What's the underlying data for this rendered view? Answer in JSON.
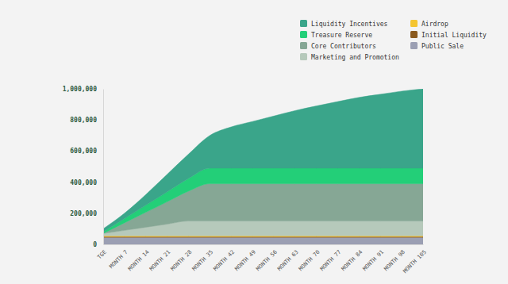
{
  "chart_data": {
    "type": "area",
    "stacked": true,
    "legend": "top-right",
    "grid": false,
    "categories": [
      "TGE",
      "MONTH 7",
      "MONTH 14",
      "MONTH 21",
      "MONTH 28",
      "MONTH 35",
      "MONTH 42",
      "MONTH 49",
      "MONTH 56",
      "MONTH 63",
      "MONTH 70",
      "MONTH 77",
      "MONTH 84",
      "MONTH 91",
      "MONTH 98",
      "MONTH 105"
    ],
    "ylim": [
      0,
      1000000
    ],
    "yticks": [
      0,
      {
        "value": 200000,
        "label": "200,000"
      },
      {
        "value": 400000,
        "label": "400,000"
      },
      {
        "value": 600000,
        "label": "600,000"
      },
      {
        "value": 800000,
        "label": "800,000"
      },
      {
        "value": 1000000,
        "label": "1,000,000"
      }
    ],
    "series": [
      {
        "name": "Liquidity Incentives",
        "color": "#3aa58a",
        "values": [
          20000,
          34000,
          68000,
          112000,
          156000,
          210000,
          265000,
          300000,
          335000,
          370000,
          400000,
          428000,
          455000,
          475000,
          495000,
          510000
        ]
      },
      {
        "name": "Treasure Reserve",
        "color": "#23cf78",
        "values": [
          10000,
          28000,
          46000,
          64000,
          82000,
          100000,
          100000,
          100000,
          100000,
          100000,
          100000,
          100000,
          100000,
          100000,
          100000,
          100000
        ]
      },
      {
        "name": "Core Contributors",
        "color": "#86a795",
        "values": [
          0,
          48000,
          96000,
          144000,
          192000,
          240000,
          240000,
          240000,
          240000,
          240000,
          240000,
          240000,
          240000,
          240000,
          240000,
          240000
        ]
      },
      {
        "name": "Marketing and Promotion",
        "color": "#b6c9bb",
        "values": [
          15000,
          35000,
          55000,
          75000,
          95000,
          95000,
          95000,
          95000,
          95000,
          95000,
          95000,
          95000,
          95000,
          95000,
          95000,
          95000
        ]
      },
      {
        "name": "Airdrop",
        "color": "#f4c531",
        "values": [
          5000,
          5000,
          5000,
          5000,
          5000,
          5000,
          5000,
          5000,
          5000,
          5000,
          5000,
          5000,
          5000,
          5000,
          5000,
          5000
        ]
      },
      {
        "name": "Initial Liquidity",
        "color": "#8a5a1e",
        "values": [
          5000,
          5000,
          5000,
          5000,
          5000,
          5000,
          5000,
          5000,
          5000,
          5000,
          5000,
          5000,
          5000,
          5000,
          5000,
          5000
        ]
      },
      {
        "name": "Public Sale",
        "color": "#9b9fb3",
        "values": [
          45000,
          45000,
          45000,
          45000,
          45000,
          45000,
          45000,
          45000,
          45000,
          45000,
          45000,
          45000,
          45000,
          45000,
          45000,
          45000
        ]
      }
    ]
  }
}
